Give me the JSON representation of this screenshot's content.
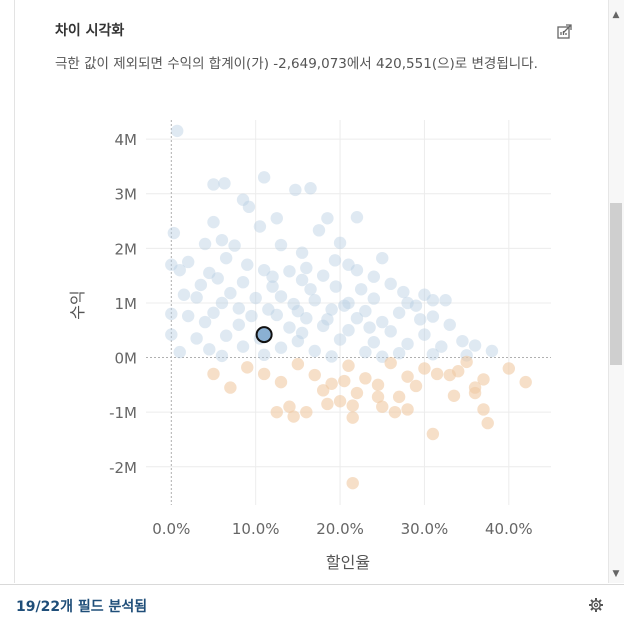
{
  "panel": {
    "title": "차이 시각화",
    "description": "극한 값이 제외되면 수익의 합계이(가) -2,649,073에서 420,551(으)로 변경됩니다."
  },
  "footer": {
    "label": "19/22개 필드 분석됨"
  },
  "icons": {
    "share": "share-icon",
    "settings": "gear-icon",
    "scroll_up": "chevron-up-icon",
    "scroll_down": "chevron-down-icon"
  },
  "colors": {
    "positive": "#b8cee2",
    "negative": "#f0c9a4",
    "highlight": "#8ab0d3",
    "grid": "#ececec",
    "zero_line": "#b0b0b0"
  },
  "chart_data": {
    "type": "scatter",
    "xlabel": "할인율",
    "ylabel": "수익",
    "xlim": [
      -0.03,
      0.45
    ],
    "ylim": [
      -2700000,
      4350000
    ],
    "x_ticks": [
      0.0,
      0.1,
      0.2,
      0.3,
      0.4
    ],
    "x_tick_labels": [
      "0.0%",
      "10.0%",
      "20.0%",
      "30.0%",
      "40.0%"
    ],
    "y_ticks": [
      4000000,
      3000000,
      2000000,
      1000000,
      0,
      -1000000,
      -2000000
    ],
    "y_tick_labels": [
      "4M",
      "3M",
      "2M",
      "1M",
      "0M",
      "-1M",
      "-2M"
    ],
    "grid": true,
    "highlight_point": {
      "x": 0.11,
      "y": 420551
    },
    "points": [
      [
        0.007,
        4150000
      ],
      [
        0.11,
        3300000
      ],
      [
        0.165,
        3100000
      ],
      [
        0.05,
        3170000
      ],
      [
        0.063,
        3190000
      ],
      [
        0.147,
        3070000
      ],
      [
        0.085,
        2890000
      ],
      [
        0.092,
        2760000
      ],
      [
        0.22,
        2570000
      ],
      [
        0.185,
        2550000
      ],
      [
        0.125,
        2550000
      ],
      [
        0.105,
        2400000
      ],
      [
        0.05,
        2480000
      ],
      [
        0.003,
        2280000
      ],
      [
        0.06,
        2150000
      ],
      [
        0.04,
        2080000
      ],
      [
        0.075,
        2050000
      ],
      [
        0.13,
        2060000
      ],
      [
        0.2,
        2100000
      ],
      [
        0.175,
        2330000
      ],
      [
        0.155,
        1920000
      ],
      [
        0.194,
        1780000
      ],
      [
        0.25,
        1820000
      ],
      [
        0.21,
        1700000
      ],
      [
        0.0,
        1700000
      ],
      [
        0.01,
        1600000
      ],
      [
        0.02,
        1750000
      ],
      [
        0.045,
        1550000
      ],
      [
        0.09,
        1700000
      ],
      [
        0.11,
        1600000
      ],
      [
        0.14,
        1580000
      ],
      [
        0.16,
        1640000
      ],
      [
        0.18,
        1500000
      ],
      [
        0.22,
        1600000
      ],
      [
        0.24,
        1480000
      ],
      [
        0.26,
        1350000
      ],
      [
        0.3,
        1150000
      ],
      [
        0.31,
        1050000
      ],
      [
        0.055,
        1450000
      ],
      [
        0.085,
        1380000
      ],
      [
        0.12,
        1300000
      ],
      [
        0.195,
        1300000
      ],
      [
        0.275,
        1200000
      ],
      [
        0.015,
        1150000
      ],
      [
        0.03,
        1100000
      ],
      [
        0.07,
        1180000
      ],
      [
        0.1,
        1090000
      ],
      [
        0.13,
        1120000
      ],
      [
        0.17,
        1050000
      ],
      [
        0.21,
        1000000
      ],
      [
        0.24,
        1080000
      ],
      [
        0.28,
        1000000
      ],
      [
        0.205,
        950000
      ],
      [
        0.29,
        950000
      ],
      [
        0.06,
        1000000
      ],
      [
        0.08,
        900000
      ],
      [
        0.15,
        850000
      ],
      [
        0.19,
        880000
      ],
      [
        0.23,
        850000
      ],
      [
        0.27,
        820000
      ],
      [
        0.31,
        750000
      ],
      [
        0.0,
        800000
      ],
      [
        0.02,
        760000
      ],
      [
        0.05,
        820000
      ],
      [
        0.095,
        760000
      ],
      [
        0.125,
        780000
      ],
      [
        0.16,
        720000
      ],
      [
        0.22,
        720000
      ],
      [
        0.25,
        650000
      ],
      [
        0.295,
        700000
      ],
      [
        0.33,
        600000
      ],
      [
        0.04,
        650000
      ],
      [
        0.08,
        600000
      ],
      [
        0.14,
        550000
      ],
      [
        0.18,
        580000
      ],
      [
        0.21,
        500000
      ],
      [
        0.26,
        480000
      ],
      [
        0.3,
        420000
      ],
      [
        0.0,
        420000
      ],
      [
        0.03,
        350000
      ],
      [
        0.065,
        400000
      ],
      [
        0.105,
        350000
      ],
      [
        0.15,
        300000
      ],
      [
        0.2,
        330000
      ],
      [
        0.24,
        280000
      ],
      [
        0.28,
        250000
      ],
      [
        0.32,
        200000
      ],
      [
        0.36,
        220000
      ],
      [
        0.01,
        100000
      ],
      [
        0.045,
        150000
      ],
      [
        0.085,
        200000
      ],
      [
        0.13,
        180000
      ],
      [
        0.17,
        120000
      ],
      [
        0.23,
        100000
      ],
      [
        0.27,
        80000
      ],
      [
        0.31,
        60000
      ],
      [
        0.35,
        40000
      ],
      [
        0.06,
        30000
      ],
      [
        0.11,
        50000
      ],
      [
        0.19,
        20000
      ],
      [
        0.25,
        15000
      ],
      [
        0.12,
        1480000
      ],
      [
        0.065,
        1820000
      ],
      [
        0.035,
        1330000
      ],
      [
        0.155,
        1420000
      ],
      [
        0.165,
        1250000
      ],
      [
        0.225,
        1250000
      ],
      [
        0.325,
        1050000
      ],
      [
        0.235,
        550000
      ],
      [
        0.145,
        980000
      ],
      [
        0.115,
        880000
      ],
      [
        0.185,
        700000
      ],
      [
        0.155,
        450000
      ],
      [
        0.345,
        300000
      ],
      [
        0.38,
        120000
      ],
      [
        0.35,
        -80000
      ],
      [
        0.09,
        -180000
      ],
      [
        0.15,
        -120000
      ],
      [
        0.21,
        -150000
      ],
      [
        0.26,
        -100000
      ],
      [
        0.3,
        -200000
      ],
      [
        0.34,
        -250000
      ],
      [
        0.11,
        -300000
      ],
      [
        0.17,
        -320000
      ],
      [
        0.23,
        -380000
      ],
      [
        0.28,
        -350000
      ],
      [
        0.33,
        -320000
      ],
      [
        0.37,
        -400000
      ],
      [
        0.13,
        -450000
      ],
      [
        0.19,
        -480000
      ],
      [
        0.245,
        -500000
      ],
      [
        0.29,
        -520000
      ],
      [
        0.05,
        -300000
      ],
      [
        0.07,
        -550000
      ],
      [
        0.18,
        -600000
      ],
      [
        0.22,
        -650000
      ],
      [
        0.27,
        -720000
      ],
      [
        0.36,
        -550000
      ],
      [
        0.42,
        -450000
      ],
      [
        0.185,
        -850000
      ],
      [
        0.215,
        -880000
      ],
      [
        0.25,
        -900000
      ],
      [
        0.28,
        -950000
      ],
      [
        0.36,
        -650000
      ],
      [
        0.14,
        -900000
      ],
      [
        0.16,
        -1000000
      ],
      [
        0.145,
        -1080000
      ],
      [
        0.2,
        -800000
      ],
      [
        0.245,
        -720000
      ],
      [
        0.37,
        -950000
      ],
      [
        0.215,
        -1100000
      ],
      [
        0.31,
        -1400000
      ],
      [
        0.375,
        -1200000
      ],
      [
        0.215,
        -2300000
      ],
      [
        0.125,
        -1000000
      ],
      [
        0.265,
        -1000000
      ],
      [
        0.315,
        -300000
      ],
      [
        0.4,
        -200000
      ],
      [
        0.335,
        -700000
      ],
      [
        0.205,
        -430000
      ]
    ]
  }
}
